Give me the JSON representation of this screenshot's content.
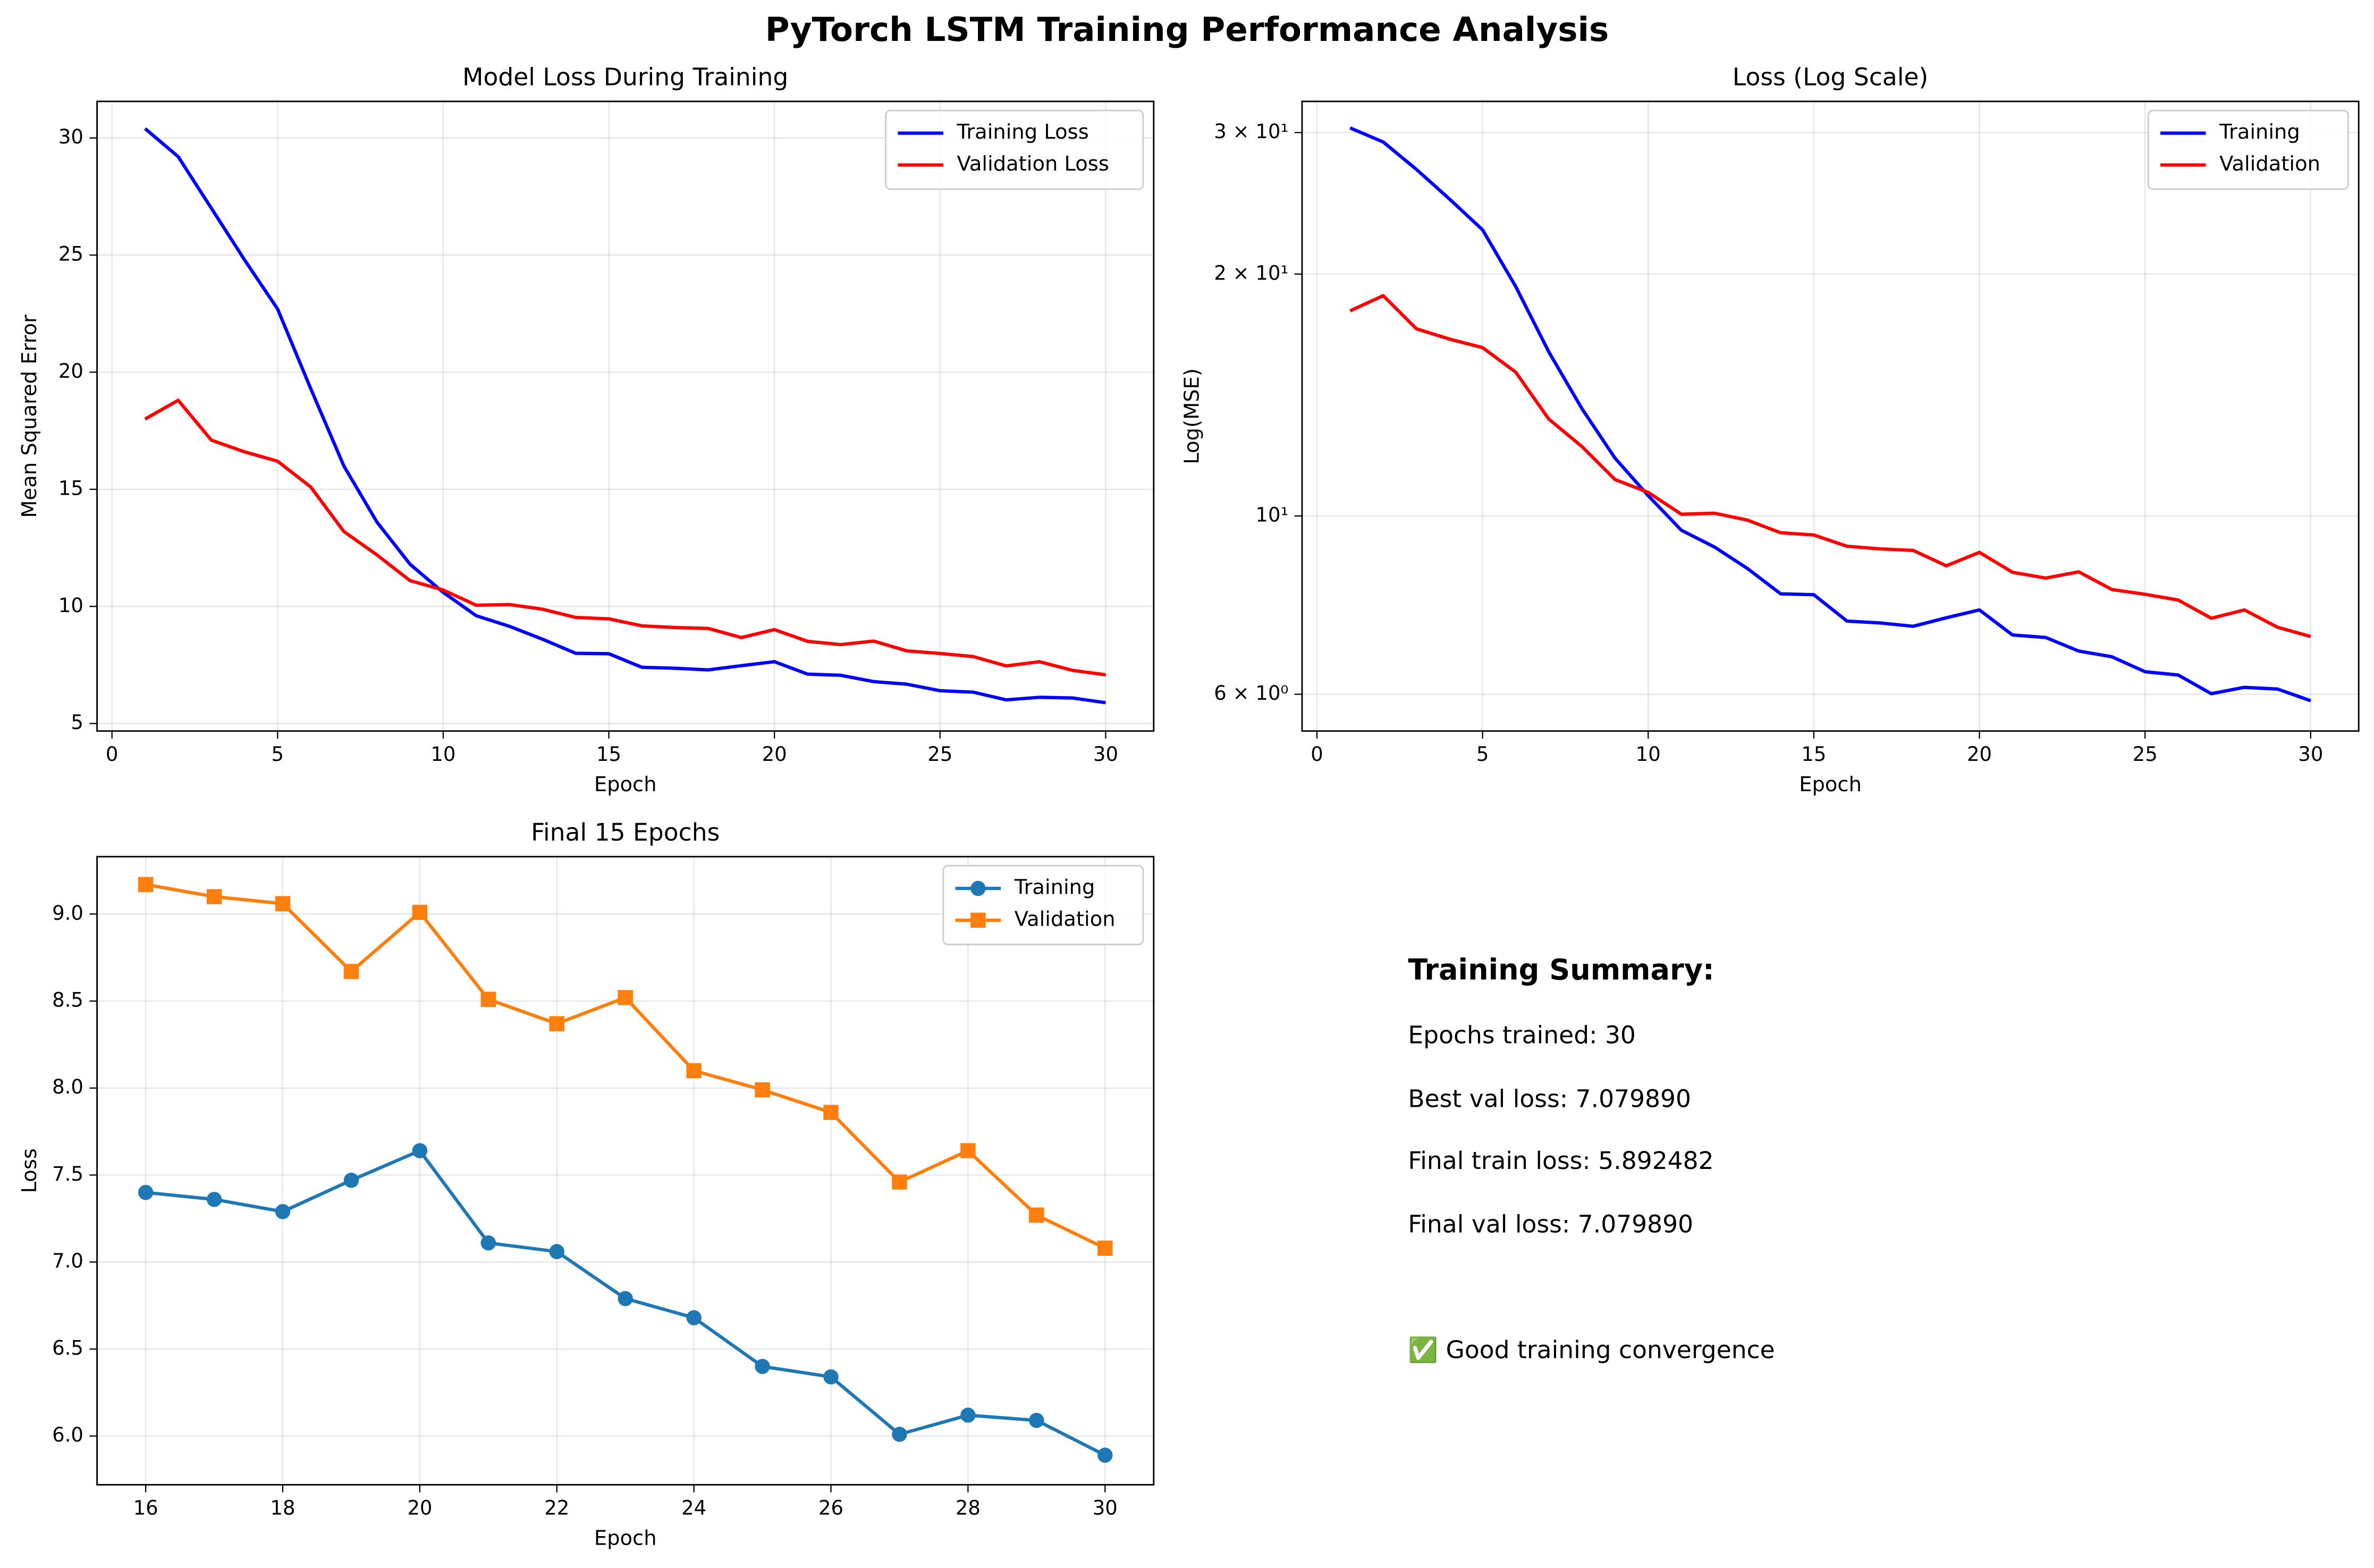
{
  "title": "PyTorch LSTM Training Performance Analysis",
  "chart_data": [
    {
      "type": "line",
      "title": "Model Loss During Training",
      "xlabel": "Epoch",
      "ylabel": "Mean Squared Error",
      "x": [
        1,
        2,
        3,
        4,
        5,
        6,
        7,
        8,
        9,
        10,
        11,
        12,
        13,
        14,
        15,
        16,
        17,
        18,
        19,
        20,
        21,
        22,
        23,
        24,
        25,
        26,
        27,
        28,
        29,
        30
      ],
      "series": [
        {
          "name": "Training Loss",
          "color": "#0000ff",
          "values": [
            30.4,
            29.2,
            27.0,
            24.8,
            22.7,
            19.3,
            16.0,
            13.6,
            11.8,
            10.6,
            9.6,
            9.15,
            8.6,
            8.0,
            7.98,
            7.4,
            7.36,
            7.29,
            7.47,
            7.64,
            7.11,
            7.06,
            6.79,
            6.68,
            6.4,
            6.34,
            6.01,
            6.12,
            6.09,
            5.89
          ]
        },
        {
          "name": "Validation Loss",
          "color": "#ff0000",
          "values": [
            18.0,
            18.8,
            17.1,
            16.6,
            16.2,
            15.1,
            13.2,
            12.2,
            11.1,
            10.7,
            10.05,
            10.08,
            9.88,
            9.53,
            9.47,
            9.17,
            9.1,
            9.06,
            8.67,
            9.01,
            8.51,
            8.37,
            8.52,
            8.1,
            7.99,
            7.86,
            7.46,
            7.64,
            7.27,
            7.08
          ]
        }
      ],
      "xlim": [
        -0.45,
        31.45
      ],
      "ylim": [
        4.68,
        31.56
      ],
      "xticks": [
        0,
        5,
        10,
        15,
        20,
        25,
        30
      ],
      "yticks": [
        5,
        10,
        15,
        20,
        25,
        30
      ],
      "grid": true,
      "legend": "upper right"
    },
    {
      "type": "line",
      "title": "Loss (Log Scale)",
      "xlabel": "Epoch",
      "ylabel": "Log(MSE)",
      "log_y": true,
      "x": [
        1,
        2,
        3,
        4,
        5,
        6,
        7,
        8,
        9,
        10,
        11,
        12,
        13,
        14,
        15,
        16,
        17,
        18,
        19,
        20,
        21,
        22,
        23,
        24,
        25,
        26,
        27,
        28,
        29,
        30
      ],
      "series": [
        {
          "name": "Training",
          "color": "#0000ff",
          "values": [
            30.4,
            29.2,
            27.0,
            24.8,
            22.7,
            19.3,
            16.0,
            13.6,
            11.8,
            10.6,
            9.6,
            9.15,
            8.6,
            8.0,
            7.98,
            7.4,
            7.36,
            7.29,
            7.47,
            7.64,
            7.11,
            7.06,
            6.79,
            6.68,
            6.4,
            6.34,
            6.01,
            6.12,
            6.09,
            5.89
          ]
        },
        {
          "name": "Validation",
          "color": "#ff0000",
          "values": [
            18.0,
            18.8,
            17.1,
            16.6,
            16.2,
            15.1,
            13.2,
            12.2,
            11.1,
            10.7,
            10.05,
            10.08,
            9.88,
            9.53,
            9.47,
            9.17,
            9.1,
            9.06,
            8.67,
            9.01,
            8.51,
            8.37,
            8.52,
            8.1,
            7.99,
            7.86,
            7.46,
            7.64,
            7.27,
            7.08
          ]
        }
      ],
      "xlim": [
        -0.45,
        31.45
      ],
      "ylim": [
        5.4,
        32.8
      ],
      "xticks": [
        0,
        5,
        10,
        15,
        20,
        25,
        30
      ],
      "yticks": [
        {
          "value": 6,
          "label": "6 × 10⁰"
        },
        {
          "value": 10,
          "label": "10¹"
        },
        {
          "value": 20,
          "label": "2 × 10¹"
        },
        {
          "value": 30,
          "label": "3 × 10¹"
        }
      ],
      "grid": true,
      "legend": "upper right"
    },
    {
      "type": "line",
      "title": "Final 15 Epochs",
      "xlabel": "Epoch",
      "ylabel": "Loss",
      "x": [
        16,
        17,
        18,
        19,
        20,
        21,
        22,
        23,
        24,
        25,
        26,
        27,
        28,
        29,
        30
      ],
      "series": [
        {
          "name": "Training",
          "color": "#1f77b4",
          "marker": "circle",
          "values": [
            7.4,
            7.36,
            7.29,
            7.47,
            7.64,
            7.11,
            7.06,
            6.79,
            6.68,
            6.4,
            6.34,
            6.01,
            6.12,
            6.09,
            5.89
          ]
        },
        {
          "name": "Validation",
          "color": "#ff7f0e",
          "marker": "square",
          "values": [
            9.17,
            9.1,
            9.06,
            8.67,
            9.01,
            8.51,
            8.37,
            8.52,
            8.1,
            7.99,
            7.86,
            7.46,
            7.64,
            7.27,
            7.08
          ]
        }
      ],
      "xlim": [
        15.29,
        30.71
      ],
      "ylim": [
        5.72,
        9.33
      ],
      "xticks": [
        16,
        18,
        20,
        22,
        24,
        26,
        28,
        30
      ],
      "yticks": [
        {
          "value": 6,
          "label": "6.0"
        },
        6.5,
        {
          "value": 7,
          "label": "7.0"
        },
        7.5,
        {
          "value": 8,
          "label": "8.0"
        },
        8.5,
        {
          "value": 9,
          "label": "9.0"
        }
      ],
      "grid": true,
      "legend": "upper right"
    }
  ],
  "summary": {
    "heading": "Training Summary:",
    "lines": [
      "Epochs trained: 30",
      "Best val loss: 7.079890",
      "Final train loss: 5.892482",
      "Final val loss: 7.079890"
    ],
    "status": "✅ Good training convergence",
    "status_color": "#008000"
  }
}
